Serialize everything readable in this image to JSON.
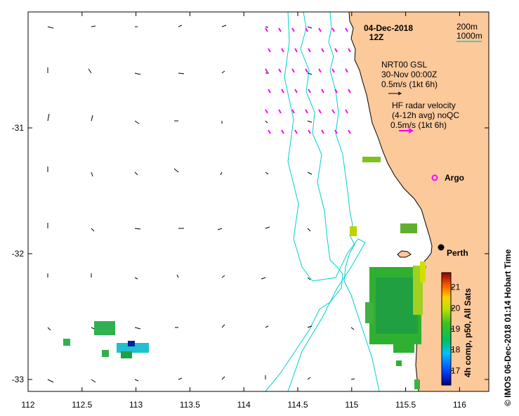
{
  "title": {
    "date": "04-Dec-2018",
    "time": "12Z"
  },
  "bathymetry_legend": {
    "contour_200": "200m",
    "contour_1000": "1000m",
    "color": "#00d0d0"
  },
  "model_legend": {
    "line1": "NRT00 GSL",
    "line2": "30-Nov 00:00Z",
    "line3": "0.5m/s (1kt 6h)",
    "color": "#000000"
  },
  "radar_legend": {
    "line1": "HF radar velocity",
    "line2": "(4-12h avg) noQC",
    "line3": "0.5m/s (1kt 6h)",
    "color": "#ff00ff"
  },
  "argo_label": "Argo",
  "city_label": "Perth",
  "colorbar": {
    "label": "4h comp, p50, All Sats",
    "ticks": [
      "17",
      "18",
      "19",
      "20",
      "21"
    ],
    "min": 16.3,
    "max": 21.7
  },
  "side_text": "© IMOS 06-Dec-2018 01:14 Hobart Time",
  "x_ticks": [
    "112",
    "112.5",
    "113",
    "113.5",
    "114",
    "114.5",
    "115",
    "115.5",
    "116"
  ],
  "y_ticks": [
    "-31",
    "-32",
    "-33"
  ],
  "colors": {
    "land": "#fcc99b",
    "coast": "#000000",
    "contour": "#00d0d0",
    "radar": "#ff00ff"
  }
}
